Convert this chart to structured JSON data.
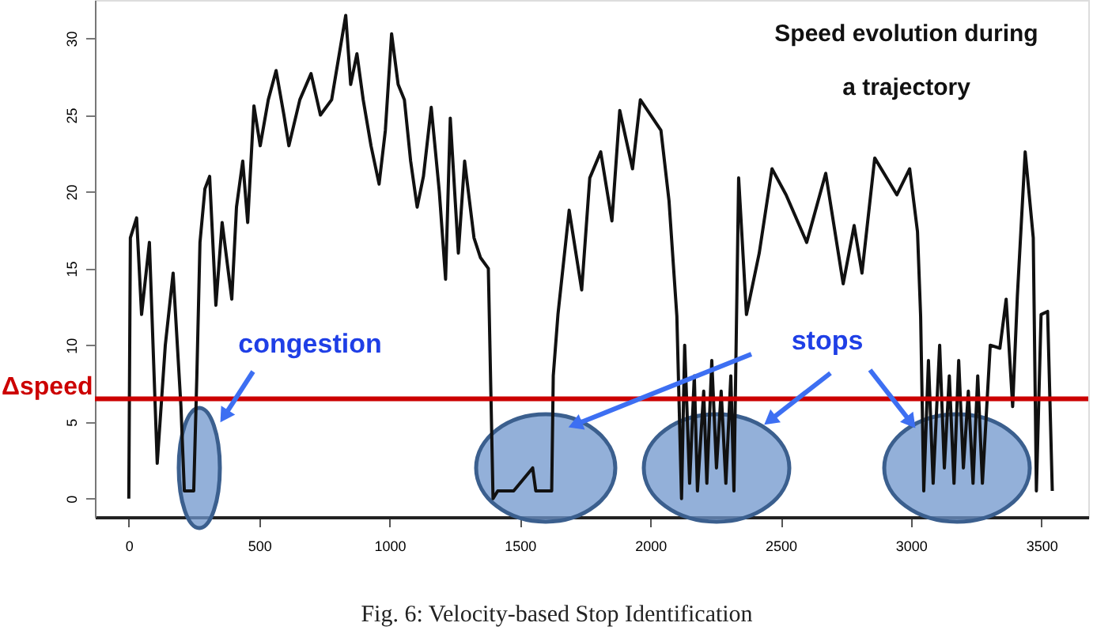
{
  "chart_data": {
    "type": "line",
    "title": "Speed evolution during\na trajectory",
    "x": [
      0,
      6,
      30,
      49,
      79,
      109,
      140,
      170,
      200,
      213,
      249,
      261,
      273,
      292,
      310,
      334,
      358,
      395,
      413,
      437,
      456,
      480,
      504,
      535,
      565,
      595,
      614,
      656,
      699,
      735,
      778,
      832,
      851,
      875,
      899,
      929,
      960,
      984,
      1008,
      1033,
      1057,
      1081,
      1106,
      1130,
      1160,
      1191,
      1215,
      1233,
      1264,
      1288,
      1324,
      1349,
      1379,
      1397,
      1415,
      1476,
      1549,
      1561,
      1622,
      1628,
      1646,
      1689,
      1737,
      1768,
      1810,
      1853,
      1883,
      1932,
      1962,
      2041,
      2072,
      2102,
      2120,
      2132,
      2151,
      2169,
      2181,
      2205,
      2217,
      2236,
      2254,
      2272,
      2290,
      2309,
      2321,
      2339,
      2369,
      2418,
      2467,
      2521,
      2600,
      2673,
      2740,
      2782,
      2812,
      2861,
      2946,
      2995,
      3025,
      3037,
      3049,
      3067,
      3085,
      3110,
      3128,
      3147,
      3165,
      3183,
      3201,
      3220,
      3238,
      3256,
      3274,
      3304,
      3341,
      3365,
      3390,
      3408,
      3438,
      3469,
      3481,
      3499,
      3524,
      3542
    ],
    "series": [
      {
        "color": "#111111",
        "values": [
          0,
          17,
          18.3,
          12,
          16.7,
          2.3,
          10,
          14.7,
          6,
          0.5,
          0.5,
          8,
          16.7,
          20.2,
          21,
          12.6,
          18,
          13,
          19,
          22,
          18,
          25.6,
          23,
          26,
          27.9,
          25,
          23,
          26,
          27.7,
          25,
          26,
          31.5,
          27,
          29,
          26,
          23,
          20.5,
          24,
          30.3,
          27,
          26,
          22,
          19,
          21,
          25.5,
          20,
          14.3,
          24.8,
          16,
          22,
          17,
          15.7,
          15,
          0,
          0.5,
          0.5,
          2,
          0.5,
          0.5,
          8,
          12,
          18.8,
          13.6,
          20.9,
          22.6,
          18.1,
          25.3,
          21.5,
          26,
          24,
          19.4,
          11.9,
          0,
          10,
          1,
          8,
          0.5,
          7,
          1,
          9,
          2,
          7,
          1,
          8,
          0.5,
          20.9,
          12,
          16,
          21.5,
          19.8,
          16.7,
          21.2,
          14,
          17.8,
          14.7,
          22.2,
          19.8,
          21.5,
          17.4,
          11.9,
          0.5,
          9,
          1,
          10,
          2,
          8,
          1,
          9,
          2,
          7,
          1,
          8,
          1,
          10,
          9.8,
          13,
          6,
          13.2,
          22.6,
          17,
          0.5,
          12,
          12.2,
          0.5
        ]
      }
    ],
    "xlim": [
      -130,
      3680
    ],
    "ylim": [
      -1.2,
      32.5
    ],
    "xticks": [
      0,
      500,
      1000,
      1500,
      2000,
      2500,
      3000,
      3500
    ],
    "yticks": [
      0,
      5,
      10,
      15,
      20,
      25,
      30
    ],
    "grid": false,
    "marker": "none",
    "line_style": "solid",
    "ref_lines": [
      {
        "axis": "y",
        "value": 6.5,
        "label": "Δspeed",
        "color": "#cc0000"
      }
    ],
    "annotations": [
      {
        "text": "congestion",
        "x": 371,
        "y": 5.5
      },
      {
        "text": "stops",
        "x": 2466,
        "y": 5.2
      },
      "Fig. 6: Velocity-based Stop Identification"
    ]
  }
}
